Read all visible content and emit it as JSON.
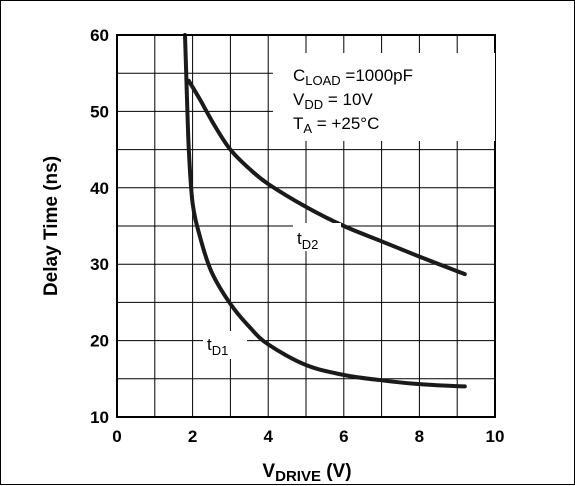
{
  "chart_data": {
    "type": "line",
    "xlabel": {
      "main": "V",
      "sub": "DRIVE",
      "unit": " (V)"
    },
    "ylabel": "Delay Time (ns)",
    "xlim": [
      0,
      10
    ],
    "ylim": [
      10,
      60
    ],
    "x_ticks": [
      "0",
      "2",
      "4",
      "6",
      "8",
      "10"
    ],
    "y_ticks": [
      "10",
      "20",
      "30",
      "40",
      "50",
      "60"
    ],
    "grid": true,
    "conditions": [
      {
        "main": "C",
        "sub": "LOAD",
        "rest": " =1000pF"
      },
      {
        "main": "V",
        "sub": "DD",
        "rest": " = 10V"
      },
      {
        "main": "T",
        "sub": "A",
        "rest": " = +25°C"
      }
    ],
    "series": [
      {
        "name": {
          "main": "t",
          "sub": "D1"
        },
        "x": [
          1.8,
          1.85,
          1.9,
          2.0,
          2.2,
          2.5,
          3.0,
          3.5,
          4.0,
          5.0,
          6.0,
          7.0,
          8.0,
          9.2
        ],
        "y": [
          60,
          52,
          45,
          38,
          33.5,
          29,
          24.8,
          21.8,
          19.5,
          16.8,
          15.5,
          14.8,
          14.3,
          14
        ]
      },
      {
        "name": {
          "main": "t",
          "sub": "D2"
        },
        "x": [
          1.9,
          2.2,
          2.6,
          3.0,
          3.5,
          4.0,
          5.0,
          6.0,
          7.0,
          8.0,
          9.2
        ],
        "y": [
          54,
          51.5,
          48,
          45,
          42.5,
          40.5,
          37.5,
          35,
          33,
          31,
          28.7
        ]
      }
    ]
  }
}
